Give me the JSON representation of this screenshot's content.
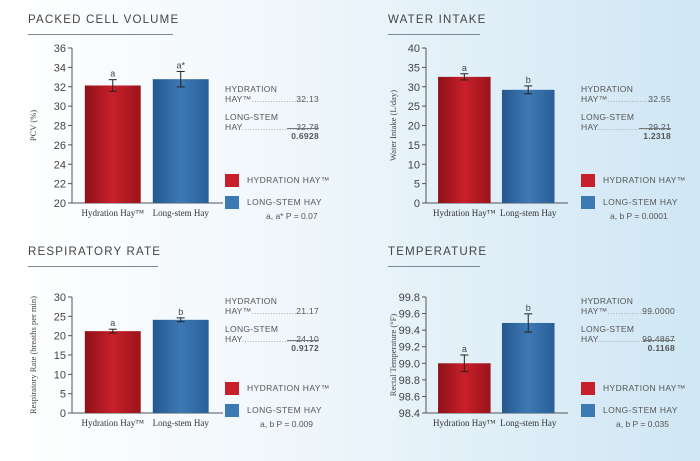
{
  "colors": {
    "hydration": "#c8202a",
    "longstem": "#3d79b5",
    "axis": "#555555"
  },
  "chart_data": [
    {
      "type": "bar",
      "title": "PACKED CELL VOLUME",
      "ylabel": "PCV (%)",
      "categories": [
        "Hydration Hay™",
        "Long-stem Hay"
      ],
      "values": [
        32.13,
        32.78
      ],
      "errors": [
        0.6,
        0.8
      ],
      "letters": [
        "a",
        "a*"
      ],
      "ylim": [
        20,
        36
      ],
      "yticks": [
        "20",
        "22",
        "24",
        "26",
        "28",
        "30",
        "32",
        "34",
        "36"
      ],
      "stats": {
        "line1": "HYDRATION",
        "hydration_label": "HAY™",
        "hydration_value": "32.13",
        "line2": "LONG-STEM",
        "longstem_label": "HAY",
        "longstem_value": "32.78",
        "sem": "0.6928"
      },
      "legend": [
        "HYDRATION HAY™",
        "LONG-STEM HAY"
      ],
      "significance": "a, a* P = 0.07"
    },
    {
      "type": "bar",
      "title": "WATER INTAKE",
      "ylabel": "Water Intake (L/day)",
      "categories": [
        "Hydration Hay™",
        "Long-stem Hay"
      ],
      "values": [
        32.55,
        29.21
      ],
      "errors": [
        0.8,
        1.0
      ],
      "letters": [
        "a",
        "b"
      ],
      "ylim": [
        0,
        40
      ],
      "yticks": [
        "0",
        "5",
        "10",
        "15",
        "20",
        "25",
        "30",
        "35",
        "40"
      ],
      "stats": {
        "line1": "HYDRATION",
        "hydration_label": "HAY™",
        "hydration_value": "32.55",
        "line2": "LONG-STEM",
        "longstem_label": "HAY",
        "longstem_value": "29.21",
        "sem": "1.2318"
      },
      "legend": [
        "HYDRATION HAY™",
        "LONG-STEM HAY"
      ],
      "significance": "a, b P = 0.0001"
    },
    {
      "type": "bar",
      "title": "RESPIRATORY RATE",
      "ylabel": "Respiratory Rate (breaths per min)",
      "categories": [
        "Hydration Hay™",
        "Long-stem Hay"
      ],
      "values": [
        21.17,
        24.1
      ],
      "errors": [
        0.5,
        0.5
      ],
      "letters": [
        "a",
        "b"
      ],
      "ylim": [
        0,
        30
      ],
      "yticks": [
        "0",
        "5",
        "10",
        "15",
        "20",
        "25",
        "30"
      ],
      "stats": {
        "line1": "HYDRATION",
        "hydration_label": "HAY™",
        "hydration_value": "21.17",
        "line2": "LONG-STEM",
        "longstem_label": "HAY",
        "longstem_value": "24.10",
        "sem": "0.9172"
      },
      "legend": [
        "HYDRATION HAY™",
        "LONG-STEM HAY"
      ],
      "significance": "a, b P = 0.009"
    },
    {
      "type": "bar",
      "title": "TEMPERATURE",
      "ylabel": "Rectal Temperature (°F)",
      "categories": [
        "Hydration Hay™",
        "Long-stem Hay"
      ],
      "values": [
        99.0,
        99.4867
      ],
      "errors": [
        0.1,
        0.11
      ],
      "letters": [
        "a",
        "b"
      ],
      "ylim": [
        98.4,
        99.8
      ],
      "yticks": [
        "98.4",
        "98.6",
        "98.8",
        "99.0",
        "99.2",
        "99.4",
        "99.6",
        "99.8"
      ],
      "stats": {
        "line1": "HYDRATION",
        "hydration_label": "HAY™",
        "hydration_value": "99.0000",
        "line2": "LONG-STEM",
        "longstem_label": "HAY",
        "longstem_value": "99.4867",
        "sem": "0.1168"
      },
      "legend": [
        "HYDRATION HAY™",
        "LONG-STEM HAY"
      ],
      "significance": "a, b P = 0.035"
    }
  ]
}
